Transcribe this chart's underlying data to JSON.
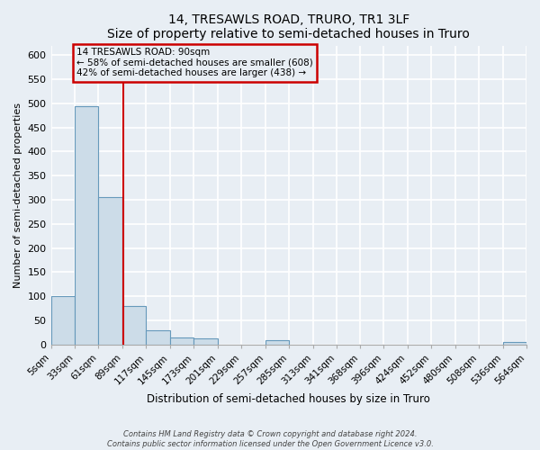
{
  "title": "14, TRESAWLS ROAD, TRURO, TR1 3LF",
  "subtitle": "Size of property relative to semi-detached houses in Truro",
  "xlabel": "Distribution of semi-detached houses by size in Truro",
  "ylabel": "Number of semi-detached properties",
  "bin_edges": [
    5,
    33,
    61,
    89,
    117,
    145,
    173,
    201,
    229,
    257,
    285,
    313,
    341,
    368,
    396,
    424,
    452,
    480,
    508,
    536,
    564
  ],
  "bin_values": [
    100,
    495,
    305,
    80,
    30,
    15,
    12,
    0,
    0,
    8,
    0,
    0,
    0,
    0,
    0,
    0,
    0,
    0,
    0,
    5
  ],
  "bar_color": "#ccdce8",
  "bar_edge_color": "#6699bb",
  "property_size": 90,
  "marker_line_color": "#cc0000",
  "annotation_title": "14 TRESAWLS ROAD: 90sqm",
  "annotation_line1": "← 58% of semi-detached houses are smaller (608)",
  "annotation_line2": "42% of semi-detached houses are larger (438) →",
  "annotation_box_edge_color": "#cc0000",
  "ylim": [
    0,
    620
  ],
  "yticks": [
    0,
    50,
    100,
    150,
    200,
    250,
    300,
    350,
    400,
    450,
    500,
    550,
    600
  ],
  "footer_line1": "Contains HM Land Registry data © Crown copyright and database right 2024.",
  "footer_line2": "Contains public sector information licensed under the Open Government Licence v3.0.",
  "background_color": "#e8eef4"
}
